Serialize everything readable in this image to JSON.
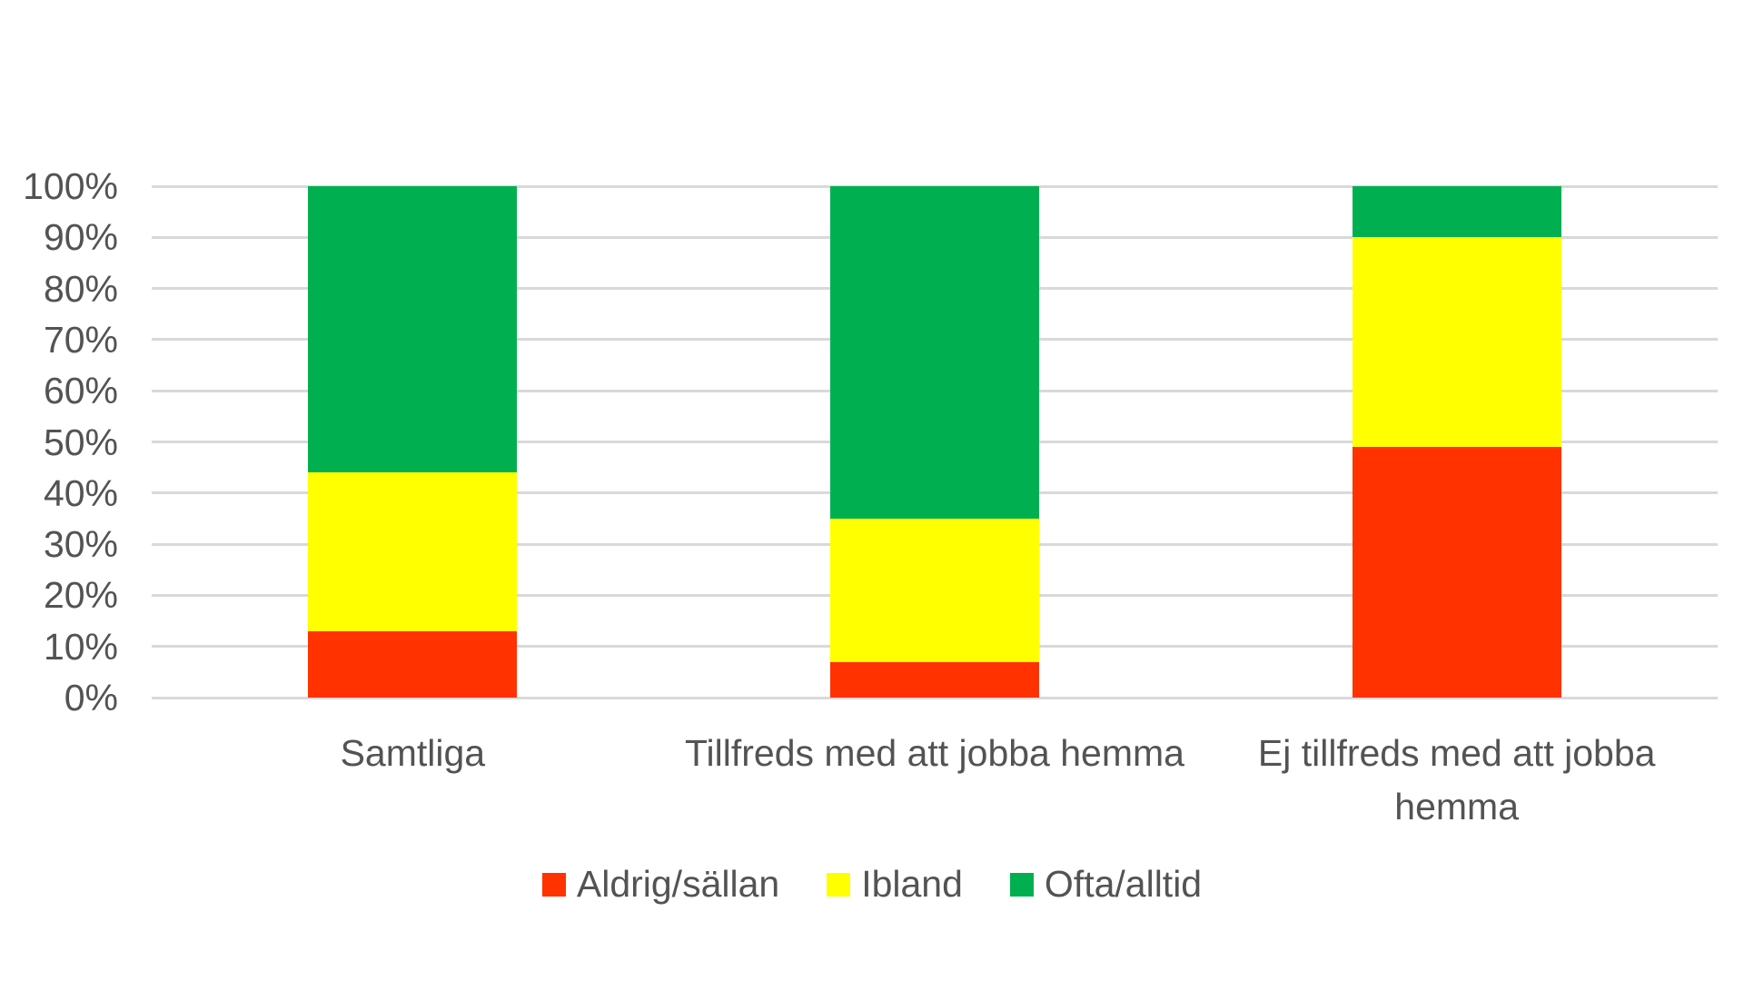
{
  "chart_data": {
    "type": "bar",
    "subtype": "stacked-100-percent",
    "title": "",
    "categories": [
      "Samtliga",
      "Tillfreds med att jobba hemma",
      "Ej tillfreds med att jobba hemma"
    ],
    "series": [
      {
        "name": "Aldrig/sällan",
        "color": "#FF3200",
        "values": [
          13,
          7,
          49
        ]
      },
      {
        "name": "Ibland",
        "color": "#FFFF00",
        "values": [
          31,
          28,
          41
        ]
      },
      {
        "name": "Ofta/alltid",
        "color": "#00B050",
        "values": [
          56,
          65,
          10
        ]
      }
    ],
    "y_axis": {
      "min": 0,
      "max": 100,
      "tick_step": 10,
      "ticks": [
        "0%",
        "10%",
        "20%",
        "30%",
        "40%",
        "50%",
        "60%",
        "70%",
        "80%",
        "90%",
        "100%"
      ],
      "grid": true
    },
    "x_axis": {
      "line": false
    },
    "legend": {
      "position": "bottom",
      "items": [
        "Aldrig/sällan",
        "Ibland",
        "Ofta/alltid"
      ]
    },
    "colors": {
      "grid": "#D9D9D9",
      "text": "#535353",
      "background": "#FFFFFF"
    }
  }
}
